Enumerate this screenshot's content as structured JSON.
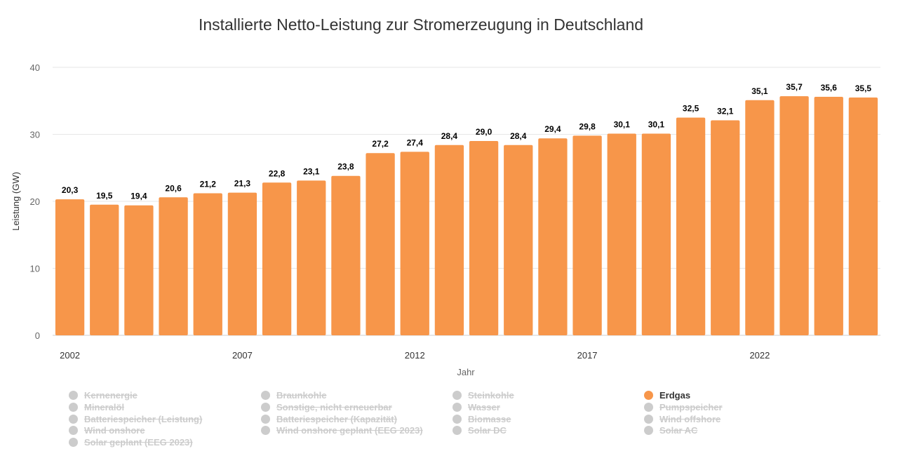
{
  "chart_data": {
    "type": "bar",
    "title": "Installierte Netto-Leistung zur Stromerzeugung in Deutschland",
    "xlabel": "Jahr",
    "ylabel": "Leistung (GW)",
    "ylim": [
      0,
      40
    ],
    "yticks": [
      "0",
      "10",
      "20",
      "30",
      "40"
    ],
    "xticks": [
      "2002",
      "2007",
      "2012",
      "2017",
      "2022"
    ],
    "grid": true,
    "categories": [
      2002,
      2003,
      2004,
      2005,
      2006,
      2007,
      2008,
      2009,
      2010,
      2011,
      2012,
      2013,
      2014,
      2015,
      2016,
      2017,
      2018,
      2019,
      2020,
      2021,
      2022,
      2023,
      2024,
      2025
    ],
    "series": [
      {
        "name": "Erdgas",
        "color": "#f7964a",
        "values": [
          20.3,
          19.5,
          19.4,
          20.6,
          21.2,
          21.3,
          22.8,
          23.1,
          23.8,
          27.2,
          27.4,
          28.4,
          29.0,
          28.4,
          29.4,
          29.8,
          30.1,
          30.1,
          32.5,
          32.1,
          35.1,
          35.7,
          35.6,
          35.5
        ]
      }
    ],
    "legend": {
      "placement": "bottom",
      "items": [
        {
          "label": "Kernenergie",
          "active": false
        },
        {
          "label": "Braunkohle",
          "active": false
        },
        {
          "label": "Steinkohle",
          "active": false
        },
        {
          "label": "Erdgas",
          "active": true
        },
        {
          "label": "Mineralöl",
          "active": false
        },
        {
          "label": "Sonstige, nicht erneuerbar",
          "active": false
        },
        {
          "label": "Wasser",
          "active": false
        },
        {
          "label": "Pumpspeicher",
          "active": false
        },
        {
          "label": "Batteriespeicher (Leistung)",
          "active": false
        },
        {
          "label": "Batteriespeicher (Kapazität)",
          "active": false
        },
        {
          "label": "Biomasse",
          "active": false
        },
        {
          "label": "Wind offshore",
          "active": false
        },
        {
          "label": "Wind onshore",
          "active": false
        },
        {
          "label": "Wind onshore geplant (EEG 2023)",
          "active": false
        },
        {
          "label": "Solar DC",
          "active": false
        },
        {
          "label": "Solar AC",
          "active": false
        },
        {
          "label": "Solar geplant (EEG 2023)",
          "active": false
        }
      ],
      "active_color": "#f7964a",
      "inactive_color": "#cccccc"
    }
  }
}
